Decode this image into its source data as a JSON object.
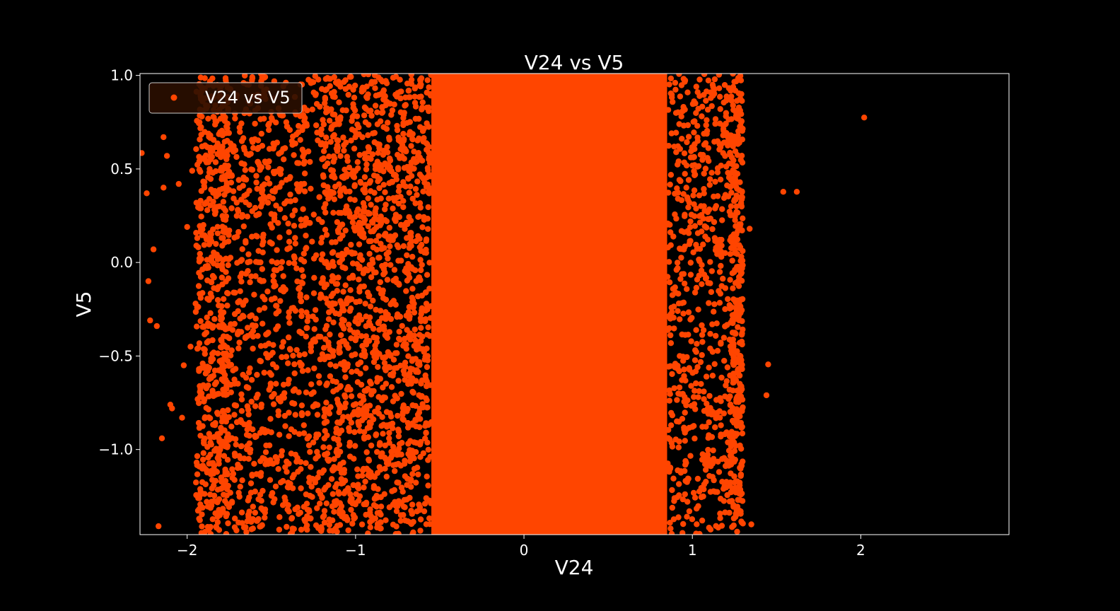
{
  "chart_data": {
    "type": "scatter",
    "title": "V24 vs V5",
    "xlabel": "V24",
    "ylabel": "V5",
    "xlim": [
      -2.28,
      2.88
    ],
    "ylim": [
      -1.455,
      1.01
    ],
    "xticks": [
      {
        "value": -2,
        "label": "−2"
      },
      {
        "value": -1,
        "label": "−1"
      },
      {
        "value": 0,
        "label": "0"
      },
      {
        "value": 1,
        "label": "1"
      },
      {
        "value": 2,
        "label": "2"
      }
    ],
    "yticks": [
      {
        "value": 1.0,
        "label": "1.0"
      },
      {
        "value": 0.5,
        "label": "0.5"
      },
      {
        "value": 0.0,
        "label": "0.0"
      },
      {
        "value": -0.5,
        "label": "−0.5"
      },
      {
        "value": -1.0,
        "label": "−1.0"
      }
    ],
    "grid": false,
    "legend": {
      "position": "upper-left",
      "entries": [
        "V24 vs V5"
      ]
    },
    "colors": {
      "background": "#000000",
      "marker": "#ff4500",
      "text": "#ffffff",
      "legend_bg": "#2a0e00"
    },
    "series": [
      {
        "name": "V24 vs V5",
        "density_note_levels": [
          {
            "x_range": [
              -0.55,
              0.85
            ],
            "density": 1.0
          },
          {
            "x_range": [
              -1.2,
              -0.55
            ],
            "density": 0.85
          },
          {
            "x_range": [
              -1.8,
              -1.2
            ],
            "density": 0.55
          },
          {
            "x_range": [
              0.85,
              1.3
            ],
            "density": 0.6
          }
        ],
        "outliers": [
          {
            "x": 2.02,
            "y": 0.775
          },
          {
            "x": 1.54,
            "y": 0.378
          },
          {
            "x": 1.62,
            "y": 0.378
          },
          {
            "x": 1.45,
            "y": -0.545
          },
          {
            "x": 1.44,
            "y": -0.71
          },
          {
            "x": 1.34,
            "y": 0.18
          },
          {
            "x": 1.35,
            "y": -1.4
          },
          {
            "x": -2.27,
            "y": 0.585
          },
          {
            "x": -2.17,
            "y": -1.41
          },
          {
            "x": -2.24,
            "y": 0.37
          },
          {
            "x": -2.23,
            "y": -0.1
          },
          {
            "x": -2.22,
            "y": -0.31
          },
          {
            "x": -2.2,
            "y": 0.07
          },
          {
            "x": -2.18,
            "y": -0.34
          },
          {
            "x": -2.15,
            "y": -0.94
          },
          {
            "x": -2.12,
            "y": 0.57
          },
          {
            "x": -2.1,
            "y": -0.76
          },
          {
            "x": -2.09,
            "y": -0.78
          },
          {
            "x": -2.05,
            "y": 0.42
          },
          {
            "x": -2.03,
            "y": -0.83
          },
          {
            "x": -2.02,
            "y": -0.55
          },
          {
            "x": -2.0,
            "y": 0.19
          },
          {
            "x": -1.98,
            "y": -0.45
          },
          {
            "x": -1.97,
            "y": 0.49
          },
          {
            "x": -1.95,
            "y": -0.22
          },
          {
            "x": -1.93,
            "y": -0.58
          },
          {
            "x": -1.92,
            "y": 0.33
          },
          {
            "x": -2.14,
            "y": 0.67
          },
          {
            "x": -2.14,
            "y": 0.4
          }
        ]
      }
    ]
  }
}
